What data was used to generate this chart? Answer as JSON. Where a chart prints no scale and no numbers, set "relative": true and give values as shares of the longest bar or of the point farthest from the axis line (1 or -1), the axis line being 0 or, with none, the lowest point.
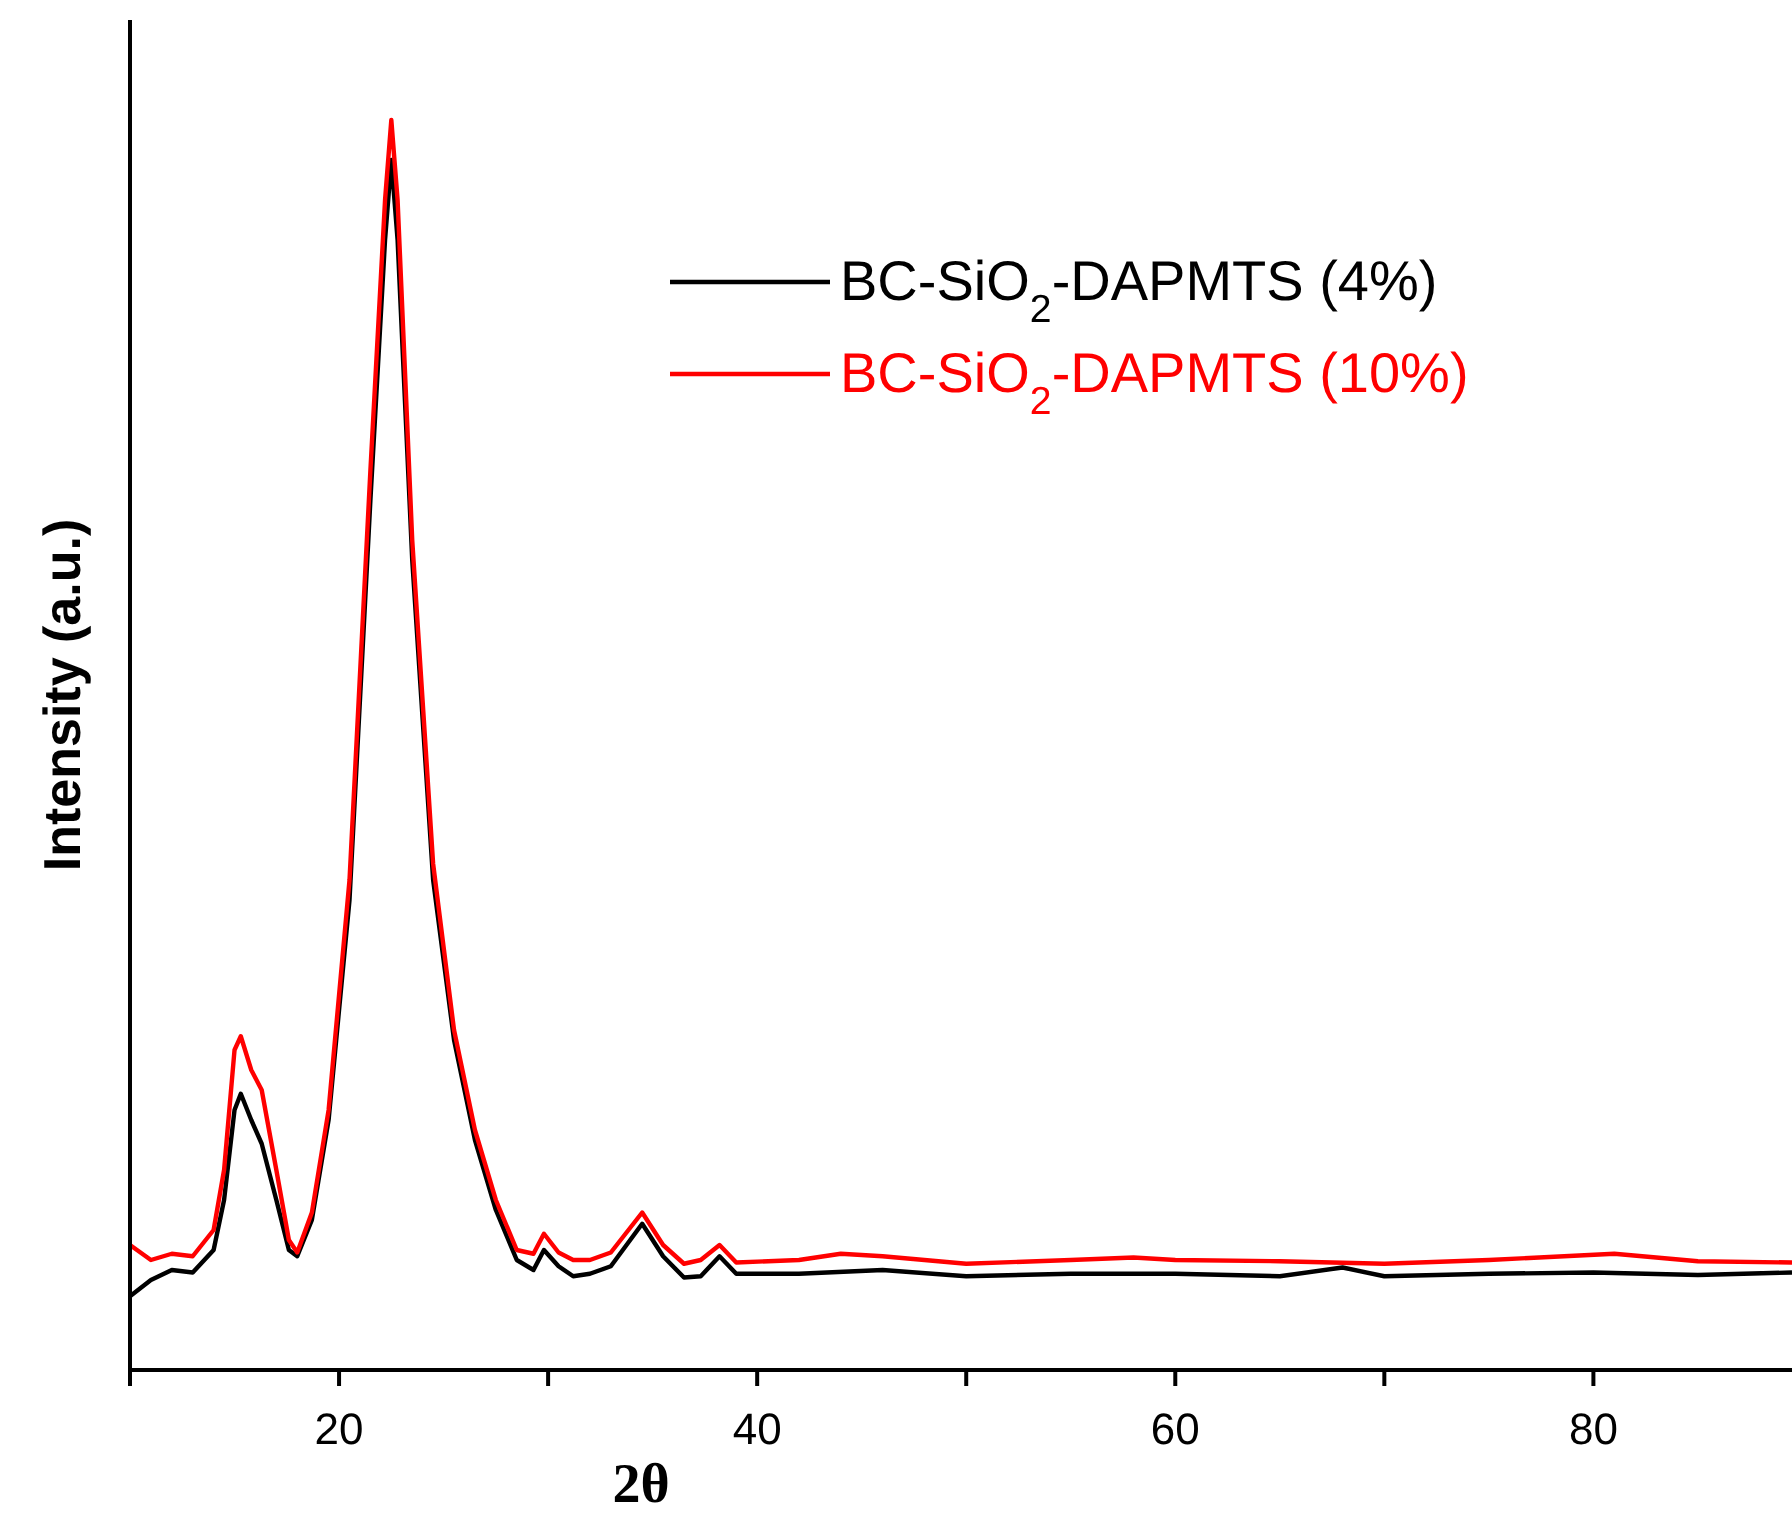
{
  "chart_data": {
    "type": "line",
    "xlabel": "2θ",
    "ylabel": "Intensity (a.u.)",
    "relative": true,
    "legend": "top right",
    "grid": false,
    "xlim": [
      10,
      89.5
    ],
    "xticks": [
      {
        "value": 10,
        "label": null
      },
      20,
      {
        "value": 30,
        "label": null
      },
      40,
      {
        "value": 50,
        "label": null
      },
      60,
      {
        "value": 70,
        "label": null
      },
      80
    ],
    "series": [
      {
        "name": "BC-SiO$_{2}$-DAPMTS (4%)",
        "color": "#000000",
        "x": [
          10,
          11,
          12,
          13,
          14,
          14.5,
          15,
          15.3,
          15.8,
          16.3,
          17,
          17.6,
          18,
          18.7,
          19.5,
          20.5,
          21.5,
          22.2,
          22.5,
          22.8,
          23.5,
          24.5,
          25.5,
          26.5,
          27.5,
          28.5,
          29.3,
          29.8,
          30.5,
          31.2,
          32,
          33,
          34.5,
          35.5,
          36.5,
          37.3,
          38.2,
          39,
          42,
          46,
          50,
          55,
          60,
          65,
          68,
          70,
          75,
          80,
          85,
          89.5
        ],
        "values": [
          0.059,
          0.072,
          0.08,
          0.078,
          0.096,
          0.136,
          0.208,
          0.221,
          0.2,
          0.181,
          0.136,
          0.096,
          0.091,
          0.12,
          0.2,
          0.376,
          0.696,
          0.904,
          0.968,
          0.904,
          0.648,
          0.392,
          0.264,
          0.184,
          0.128,
          0.088,
          0.08,
          0.096,
          0.083,
          0.075,
          0.077,
          0.083,
          0.117,
          0.091,
          0.074,
          0.075,
          0.091,
          0.077,
          0.077,
          0.08,
          0.075,
          0.077,
          0.077,
          0.075,
          0.082,
          0.075,
          0.077,
          0.078,
          0.076,
          0.078
        ]
      },
      {
        "name": "BC-SiO$_{2}$-DAPMTS (10%)",
        "color": "#ff0000",
        "x": [
          10,
          11,
          12,
          13,
          14,
          14.5,
          15,
          15.3,
          15.8,
          16.3,
          17,
          17.6,
          18,
          18.7,
          19.5,
          20.5,
          21.5,
          22.2,
          22.5,
          22.8,
          23.5,
          24.5,
          25.5,
          26.5,
          27.5,
          28.5,
          29.3,
          29.8,
          30.5,
          31.2,
          32,
          33,
          34.5,
          35.5,
          36.5,
          37.3,
          38.2,
          39,
          42,
          44,
          46,
          50,
          55,
          58,
          60,
          65,
          70,
          75,
          81,
          85,
          89.5
        ],
        "values": [
          0.1,
          0.088,
          0.093,
          0.091,
          0.112,
          0.16,
          0.256,
          0.267,
          0.24,
          0.224,
          0.16,
          0.104,
          0.094,
          0.126,
          0.208,
          0.392,
          0.72,
          0.936,
          1,
          0.936,
          0.664,
          0.405,
          0.272,
          0.192,
          0.136,
          0.096,
          0.093,
          0.109,
          0.094,
          0.088,
          0.088,
          0.094,
          0.126,
          0.1,
          0.085,
          0.088,
          0.1,
          0.086,
          0.088,
          0.093,
          0.091,
          0.085,
          0.088,
          0.09,
          0.088,
          0.087,
          0.085,
          0.088,
          0.093,
          0.087,
          0.086
        ]
      }
    ]
  }
}
